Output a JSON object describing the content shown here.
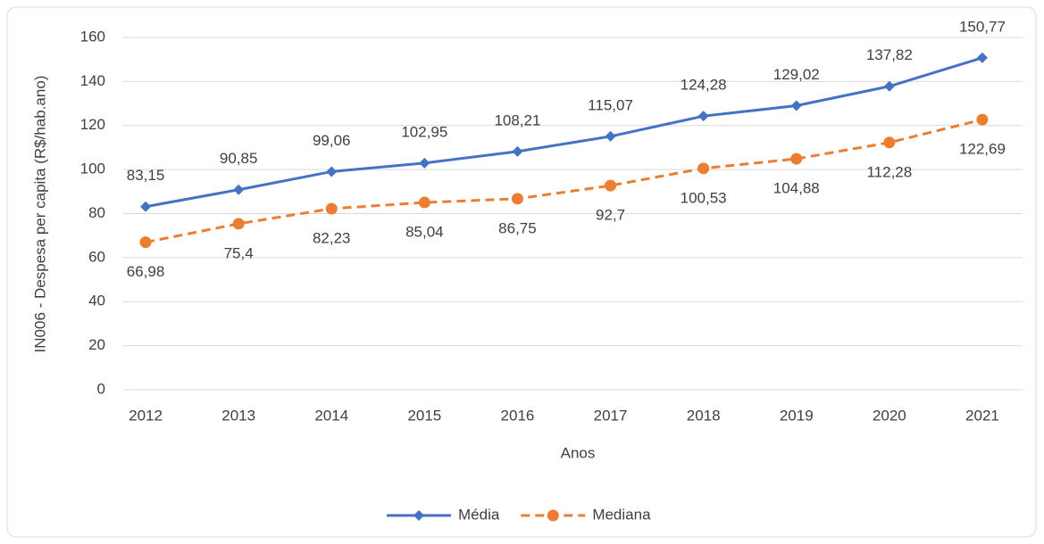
{
  "chart_data": {
    "type": "line",
    "x_label": "Anos",
    "y_label": "IN006 - Despesa per capita (R$/hab.ano)",
    "categories": [
      "2012",
      "2013",
      "2014",
      "2015",
      "2016",
      "2017",
      "2018",
      "2019",
      "2020",
      "2021"
    ],
    "series": [
      {
        "name": "Média",
        "color": "#4472c4",
        "marker": "diamond",
        "dashed": false,
        "label_position": "above",
        "values": [
          83.15,
          90.85,
          99.06,
          102.95,
          108.21,
          115.07,
          124.28,
          129.02,
          137.82,
          150.77
        ],
        "value_labels": [
          "83,15",
          "90,85",
          "99,06",
          "102,95",
          "108,21",
          "115,07",
          "124,28",
          "129,02",
          "137,82",
          "150,77"
        ]
      },
      {
        "name": "Mediana",
        "color": "#ed7d31",
        "marker": "circle",
        "dashed": true,
        "label_position": "below",
        "values": [
          66.98,
          75.4,
          82.23,
          85.04,
          86.75,
          92.7,
          100.53,
          104.88,
          112.28,
          122.69
        ],
        "value_labels": [
          "66,98",
          "75,4",
          "82,23",
          "85,04",
          "86,75",
          "92,7",
          "100,53",
          "104,88",
          "112,28",
          "122,69"
        ]
      }
    ],
    "ylim": [
      0,
      160
    ],
    "yticks": [
      0,
      20,
      40,
      60,
      80,
      100,
      120,
      140,
      160
    ],
    "grid": true,
    "legend": "bottom"
  }
}
